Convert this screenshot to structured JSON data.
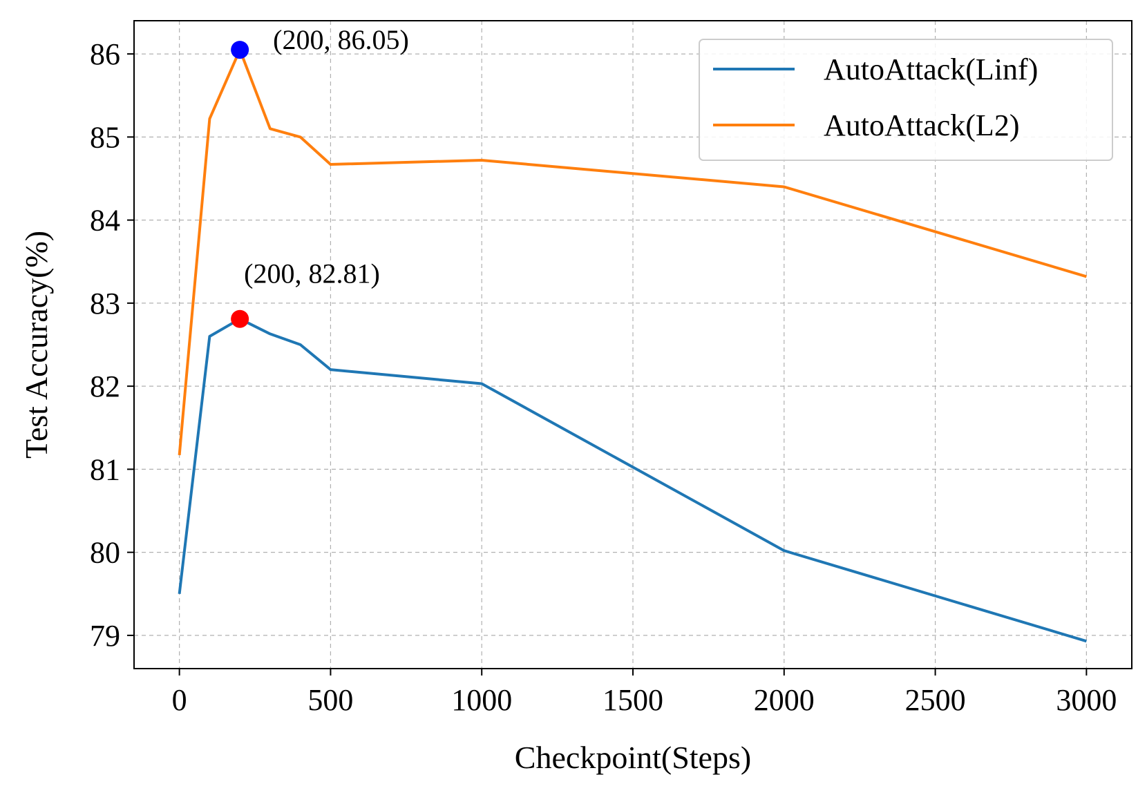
{
  "chart_data": {
    "type": "line",
    "title": "",
    "xlabel": "Checkpoint(Steps)",
    "ylabel": "Test Accuracy(%)",
    "xlim": [
      -150,
      3150
    ],
    "ylim": [
      78.6,
      86.4
    ],
    "xticks": [
      0,
      500,
      1000,
      1500,
      2000,
      2500,
      3000
    ],
    "yticks": [
      79,
      80,
      81,
      82,
      83,
      84,
      85,
      86
    ],
    "grid": true,
    "legend_position": "top-right",
    "x": [
      0,
      100,
      200,
      300,
      400,
      500,
      1000,
      2000,
      3000
    ],
    "series": [
      {
        "name": "AutoAttack(Linf)",
        "color": "#1f77b4",
        "values": [
          79.5,
          82.6,
          82.81,
          82.63,
          82.5,
          82.2,
          82.03,
          80.02,
          78.93
        ]
      },
      {
        "name": "AutoAttack(L2)",
        "color": "#ff7f0e",
        "values": [
          81.17,
          85.22,
          86.05,
          85.1,
          85.0,
          84.67,
          84.72,
          84.4,
          83.32
        ]
      }
    ],
    "annotations": [
      {
        "x": 200,
        "y": 86.05,
        "text": "(200, 86.05)",
        "marker_color": "#0000ff"
      },
      {
        "x": 200,
        "y": 82.81,
        "text": "(200, 82.81)",
        "marker_color": "#ff0000"
      }
    ]
  }
}
